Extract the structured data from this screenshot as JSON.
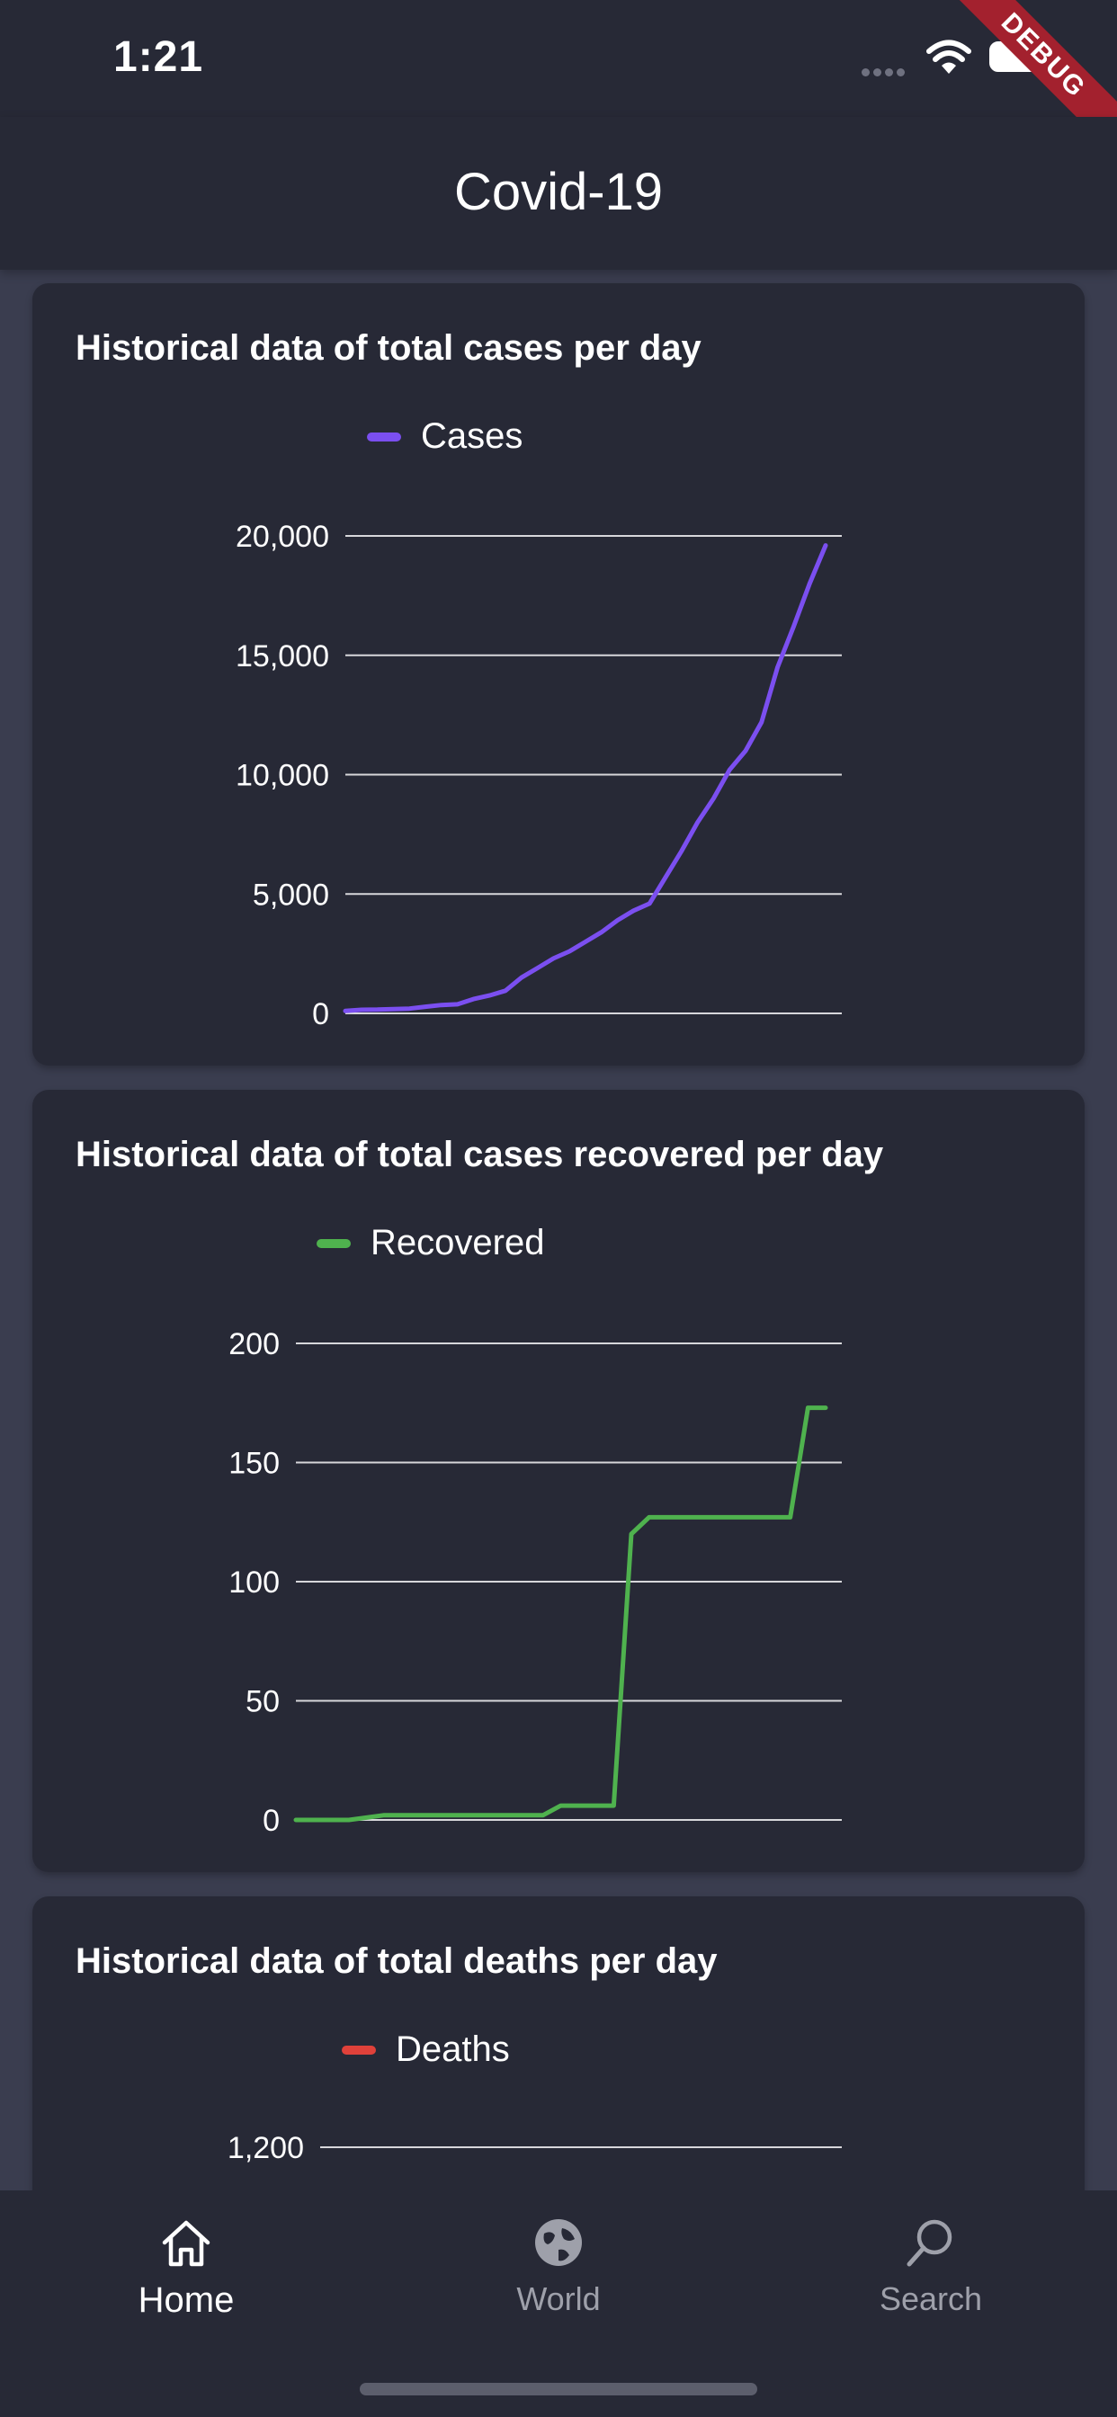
{
  "status_bar": {
    "time": "1:21",
    "debug_label": "DEBUG"
  },
  "app_bar": {
    "title": "Covid-19"
  },
  "colors": {
    "background": "#3a3d4f",
    "surface": "#272936",
    "cases": "#7b4ff0",
    "recovered": "#4fb24e",
    "deaths": "#e0413a",
    "inactive": "#9ea0aa"
  },
  "cards": [
    {
      "title": "Historical data of total cases per day",
      "legend": "Cases",
      "chart_data": {
        "type": "line",
        "series": [
          {
            "name": "Cases",
            "values": [
              100,
              150,
              160,
              180,
              200,
              280,
              350,
              380,
              600,
              750,
              950,
              1500,
              1900,
              2300,
              2600,
              3000,
              3400,
              3900,
              4300,
              4600,
              5700,
              6800,
              8000,
              9000,
              10200,
              11000,
              12200,
              14500,
              16200,
              18000,
              19600
            ]
          }
        ],
        "yticks": [
          "0",
          "5,000",
          "10,000",
          "15,000",
          "20,000"
        ],
        "ylim": [
          0,
          20000
        ]
      }
    },
    {
      "title": "Historical data of total cases recovered per day",
      "legend": "Recovered",
      "chart_data": {
        "type": "line",
        "series": [
          {
            "name": "Recovered",
            "values": [
              0,
              0,
              0,
              0,
              1,
              2,
              2,
              2,
              2,
              2,
              2,
              2,
              2,
              2,
              2,
              6,
              6,
              6,
              6,
              120,
              127,
              127,
              127,
              127,
              127,
              127,
              127,
              127,
              127,
              173,
              173
            ]
          }
        ],
        "yticks": [
          "0",
          "50",
          "100",
          "150",
          "200"
        ],
        "ylim": [
          0,
          200
        ]
      }
    },
    {
      "title": "Historical data of total deaths per day",
      "legend": "Deaths",
      "chart_data": {
        "type": "line",
        "series": [
          {
            "name": "Deaths",
            "values": []
          }
        ],
        "yticks": [
          "1,200"
        ],
        "ylim": [
          0,
          1200
        ]
      }
    }
  ],
  "bottom_nav": {
    "items": [
      {
        "label": "Home",
        "icon": "home-icon",
        "active": true
      },
      {
        "label": "World",
        "icon": "globe-icon",
        "active": false
      },
      {
        "label": "Search",
        "icon": "search-icon",
        "active": false
      }
    ]
  }
}
